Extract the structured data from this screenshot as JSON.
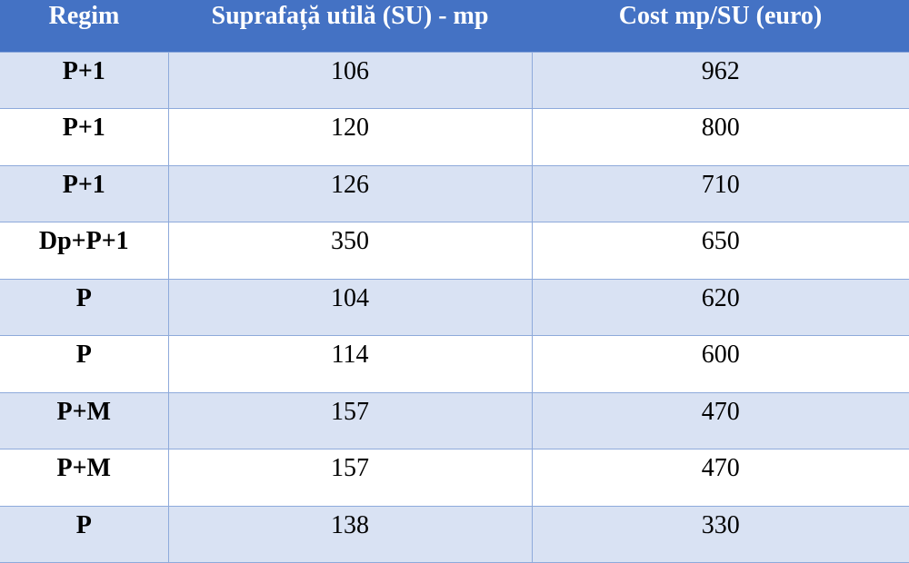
{
  "table": {
    "headers": [
      "Regim",
      "Suprafață utilă (SU) - mp",
      "Cost mp/SU (euro)"
    ],
    "rows": [
      [
        "P+1",
        "106",
        "962"
      ],
      [
        "P+1",
        "120",
        "800"
      ],
      [
        "P+1",
        "126",
        "710"
      ],
      [
        "Dp+P+1",
        "350",
        "650"
      ],
      [
        "P",
        "104",
        "620"
      ],
      [
        "P",
        "114",
        "600"
      ],
      [
        "P+M",
        "157",
        "470"
      ],
      [
        "P+M",
        "157",
        "470"
      ],
      [
        "P",
        "138",
        "330"
      ]
    ]
  },
  "colors": {
    "header_bg": "#4472c4",
    "header_text": "#ffffff",
    "band_bg": "#d9e2f3",
    "border": "#8eaadb"
  }
}
